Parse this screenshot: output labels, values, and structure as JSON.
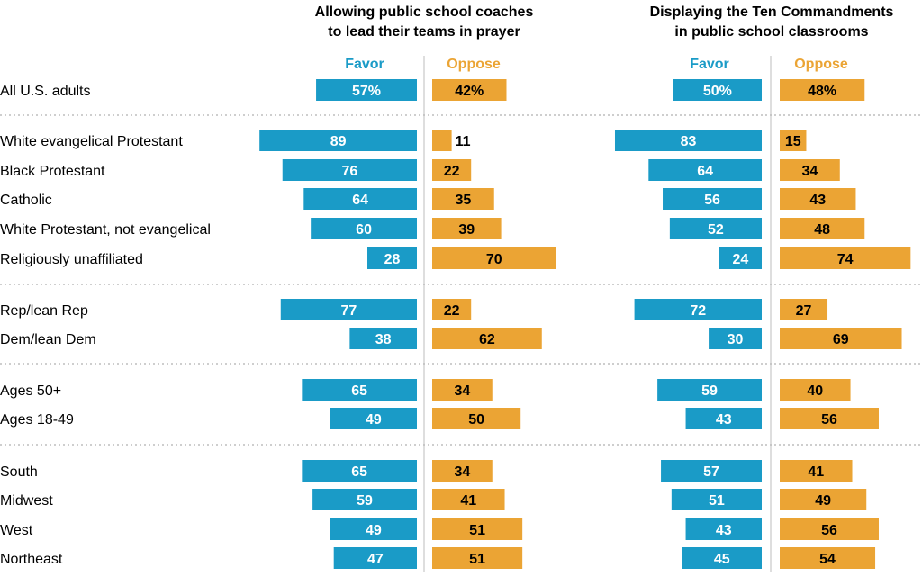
{
  "chart_data": {
    "type": "bar",
    "orientation": "horizontal-diverging",
    "colors": {
      "favor": "#1a9bc7",
      "oppose": "#eba434",
      "favor_text": "#ffffff",
      "oppose_text": "#000000",
      "divider": "#bdbdbd"
    },
    "columns": {
      "favor": "Favor",
      "oppose": "Oppose"
    },
    "categories": [
      "All U.S. adults",
      "White evangelical Protestant",
      "Black Protestant",
      "Catholic",
      "White Protestant, not evangelical",
      "Religiously unaffiliated",
      "Rep/lean Rep",
      "Dem/lean Dem",
      "Ages 50+",
      "Ages 18-49",
      "South",
      "Midwest",
      "West",
      "Northeast"
    ],
    "groups": [
      [
        0
      ],
      [
        1,
        2,
        3,
        4,
        5
      ],
      [
        6,
        7
      ],
      [
        8,
        9
      ],
      [
        10,
        11,
        12,
        13
      ]
    ],
    "panels": [
      {
        "title_lines": [
          "Allowing public school coaches",
          "to lead their teams in prayer"
        ],
        "favor": [
          57,
          89,
          76,
          64,
          60,
          28,
          77,
          38,
          65,
          49,
          65,
          59,
          49,
          47
        ],
        "oppose": [
          42,
          11,
          22,
          35,
          39,
          70,
          22,
          62,
          34,
          50,
          34,
          41,
          51,
          51
        ]
      },
      {
        "title_lines": [
          "Displaying the Ten Commandments",
          "in public school classrooms"
        ],
        "favor": [
          50,
          83,
          64,
          56,
          52,
          24,
          72,
          30,
          59,
          43,
          57,
          51,
          43,
          45
        ],
        "oppose": [
          48,
          15,
          34,
          43,
          48,
          74,
          27,
          69,
          40,
          56,
          41,
          49,
          56,
          54
        ]
      }
    ],
    "value_suffix_first_row": "%"
  }
}
